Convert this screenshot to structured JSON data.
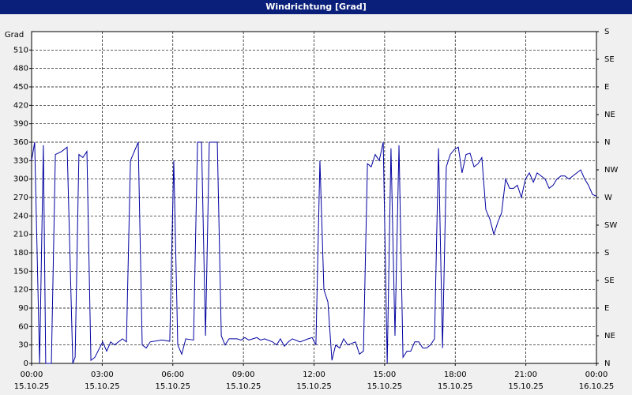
{
  "chart_data": {
    "type": "line",
    "title": "Windrichtung [Grad]",
    "y_label": "Grad",
    "color": "#0000a0",
    "grid": true,
    "x": [
      0,
      0.13,
      0.34,
      0.5,
      0.6,
      0.84,
      1.01,
      1.28,
      1.51,
      1.75,
      1.85,
      2.01,
      2.18,
      2.35,
      2.52,
      2.69,
      3.02,
      3.19,
      3.36,
      3.52,
      3.86,
      4.03,
      4.2,
      4.53,
      4.7,
      4.87,
      5.04,
      5.54,
      5.87,
      6.04,
      6.21,
      6.38,
      6.55,
      6.88,
      7.05,
      7.22,
      7.39,
      7.55,
      7.89,
      8.06,
      8.22,
      8.39,
      8.73,
      8.9,
      9.06,
      9.23,
      9.4,
      9.57,
      9.73,
      9.9,
      10.24,
      10.41,
      10.57,
      10.74,
      10.91,
      11.08,
      11.41,
      11.75,
      11.92,
      12.08,
      12.25,
      12.42,
      12.59,
      12.76,
      12.92,
      13.09,
      13.26,
      13.43,
      13.76,
      13.93,
      14.1,
      14.27,
      14.43,
      14.6,
      14.77,
      14.94,
      15.11,
      15.27,
      15.44,
      15.61,
      15.78,
      15.95,
      16.11,
      16.28,
      16.45,
      16.62,
      16.78,
      16.95,
      17.12,
      17.29,
      17.46,
      17.62,
      17.79,
      17.96,
      18.13,
      18.29,
      18.46,
      18.63,
      18.8,
      18.97,
      19.13,
      19.3,
      19.47,
      19.64,
      19.81,
      19.97,
      20.14,
      20.31,
      20.48,
      20.64,
      20.81,
      20.98,
      21.15,
      21.32,
      21.48,
      21.65,
      21.82,
      21.99,
      22.16,
      22.32,
      22.49,
      22.66,
      22.83,
      23.33,
      23.5,
      23.66,
      23.83,
      24
    ],
    "values": [
      330,
      360,
      0,
      355,
      0,
      0,
      340,
      345,
      352,
      0,
      10,
      340,
      335,
      345,
      5,
      10,
      35,
      20,
      35,
      30,
      40,
      35,
      330,
      360,
      30,
      25,
      35,
      38,
      36,
      330,
      30,
      15,
      40,
      38,
      360,
      360,
      45,
      360,
      360,
      45,
      30,
      40,
      40,
      38,
      42,
      38,
      40,
      42,
      38,
      40,
      35,
      30,
      40,
      28,
      35,
      40,
      35,
      40,
      42,
      30,
      330,
      120,
      100,
      5,
      30,
      25,
      40,
      30,
      35,
      15,
      20,
      325,
      320,
      340,
      330,
      360,
      0,
      350,
      45,
      355,
      10,
      20,
      20,
      35,
      35,
      25,
      25,
      30,
      40,
      350,
      25,
      320,
      340,
      348,
      352,
      310,
      340,
      342,
      320,
      325,
      335,
      250,
      235,
      210,
      230,
      245,
      300,
      285,
      285,
      290,
      270,
      300,
      310,
      295,
      310,
      305,
      300,
      285,
      290,
      300,
      305,
      305,
      300,
      315,
      300,
      290,
      275,
      272
    ],
    "xlim": [
      0,
      24
    ],
    "xticks": [
      {
        "value": 0,
        "label": "00:00",
        "date": "15.10.25"
      },
      {
        "value": 3,
        "label": "03:00",
        "date": "15.10.25"
      },
      {
        "value": 6,
        "label": "06:00",
        "date": "15.10.25"
      },
      {
        "value": 9,
        "label": "09:00",
        "date": "15.10.25"
      },
      {
        "value": 12,
        "label": "12:00",
        "date": "15.10.25"
      },
      {
        "value": 15,
        "label": "15:00",
        "date": "15.10.25"
      },
      {
        "value": 18,
        "label": "18:00",
        "date": "15.10.25"
      },
      {
        "value": 21,
        "label": "21:00",
        "date": "15.10.25"
      },
      {
        "value": 24,
        "label": "00:00",
        "date": "16.10.25"
      }
    ],
    "ylim": [
      0,
      540
    ],
    "yticks": [
      0,
      30,
      60,
      90,
      120,
      150,
      180,
      210,
      240,
      270,
      300,
      330,
      360,
      390,
      420,
      450,
      480,
      510
    ],
    "y2lim": [
      0,
      540
    ],
    "y2ticks": [
      {
        "value": 0,
        "label": "N"
      },
      {
        "value": 45,
        "label": "NE"
      },
      {
        "value": 90,
        "label": "E"
      },
      {
        "value": 135,
        "label": "SE"
      },
      {
        "value": 180,
        "label": "S"
      },
      {
        "value": 225,
        "label": "SW"
      },
      {
        "value": 270,
        "label": "W"
      },
      {
        "value": 315,
        "label": "NW"
      },
      {
        "value": 360,
        "label": "N"
      },
      {
        "value": 405,
        "label": "NE"
      },
      {
        "value": 450,
        "label": "E"
      },
      {
        "value": 495,
        "label": "SE"
      },
      {
        "value": 540,
        "label": "S"
      }
    ]
  }
}
